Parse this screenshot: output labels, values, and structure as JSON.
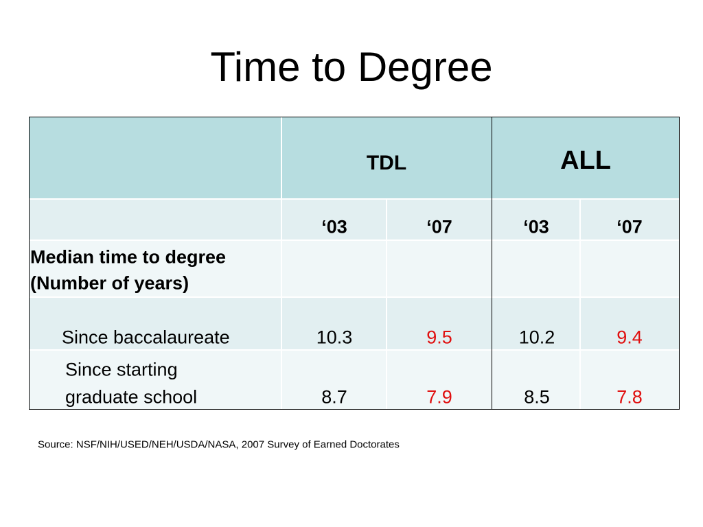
{
  "title": "Time to Degree",
  "table": {
    "groups": [
      "TDL",
      "ALL"
    ],
    "years": [
      "‘03",
      "‘07",
      "‘03",
      "‘07"
    ],
    "section_label": [
      "Median time to degree",
      "(Number of years)"
    ],
    "rows": [
      {
        "label": [
          "Since baccalaureate"
        ],
        "values": [
          10.3,
          9.5,
          10.2,
          9.4
        ]
      },
      {
        "label": [
          "Since starting",
          "graduate school"
        ],
        "values": [
          8.7,
          7.9,
          8.5,
          7.8
        ]
      }
    ]
  },
  "source": "Source: NSF/NIH/USED/NEH/USDA/NASA, 2007 Survey of Earned Doctorates"
}
